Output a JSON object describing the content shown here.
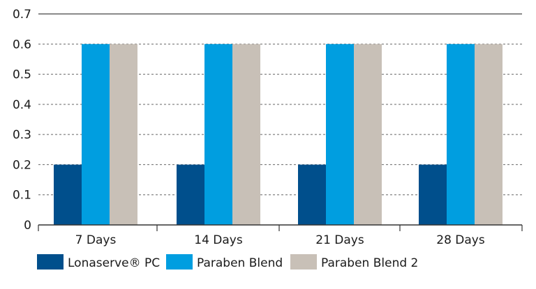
{
  "chart_data": {
    "type": "bar",
    "title": "",
    "xlabel": "",
    "ylabel": "",
    "categories": [
      "7 Days",
      "14 Days",
      "21 Days",
      "28 Days"
    ],
    "series": [
      {
        "name": "Lonaserve® PC",
        "color": "#004f8c",
        "values": [
          0.2,
          0.2,
          0.2,
          0.2
        ]
      },
      {
        "name": "Paraben Blend",
        "color": "#009ee0",
        "values": [
          0.6,
          0.6,
          0.6,
          0.6
        ]
      },
      {
        "name": "Paraben Blend 2",
        "color": "#c8c0b7",
        "values": [
          0.6,
          0.6,
          0.6,
          0.6
        ]
      }
    ],
    "ylim": [
      0,
      0.7
    ],
    "yticks": [
      "0",
      "0.1",
      "0.2",
      "0.3",
      "0.4",
      "0.5",
      "0.6",
      "0.7"
    ],
    "grid": "dashed horizontal",
    "legend_position": "bottom"
  }
}
